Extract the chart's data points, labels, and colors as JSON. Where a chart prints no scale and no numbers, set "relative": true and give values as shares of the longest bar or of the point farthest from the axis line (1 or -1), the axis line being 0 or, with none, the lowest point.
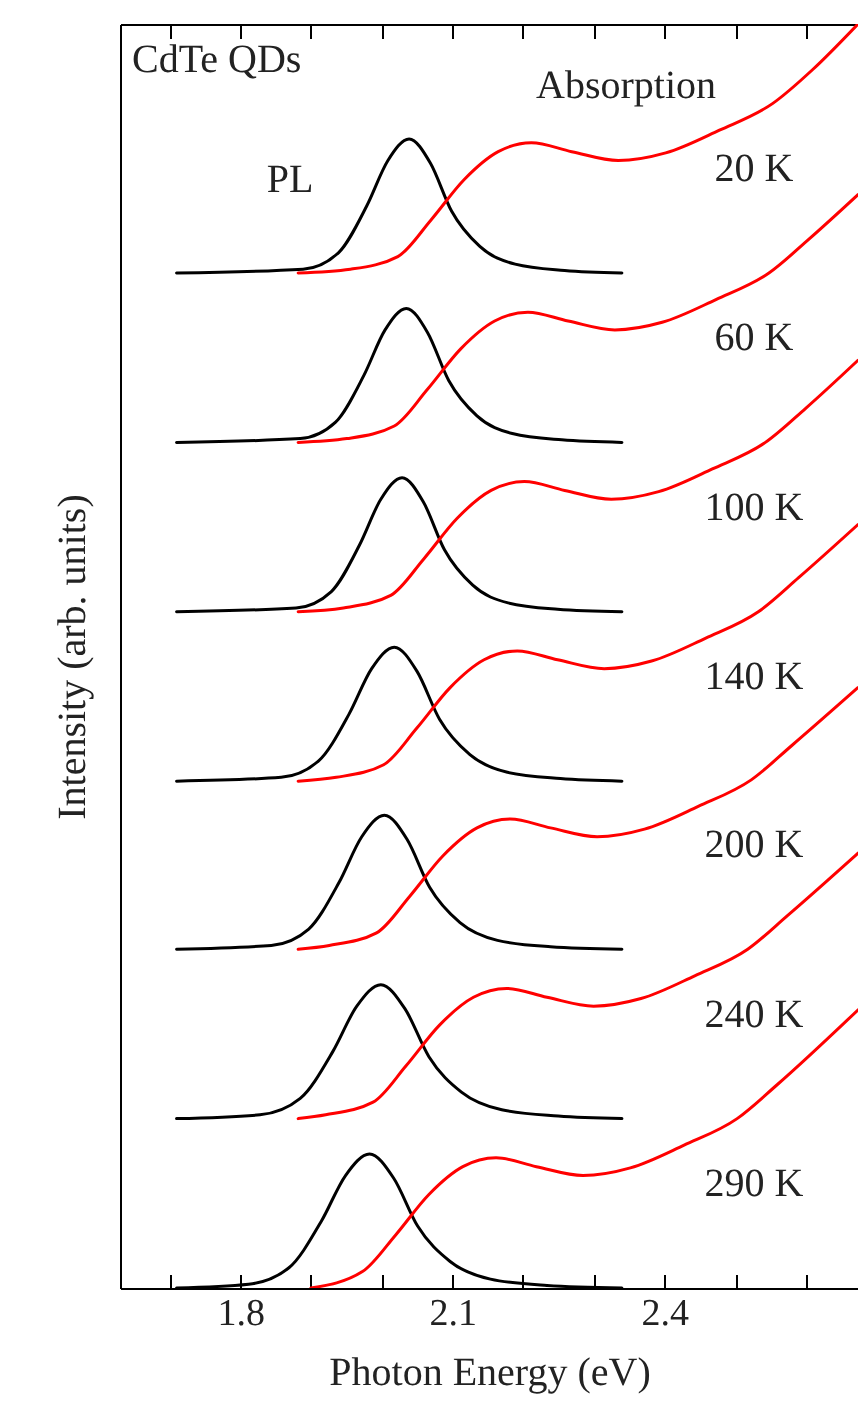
{
  "chart_data": {
    "type": "line",
    "xlabel": "Photon Energy (eV)",
    "ylabel": "Intensity (arb. units)",
    "relative": true,
    "xlim": [
      1.63,
      2.674
    ],
    "xticks": [
      {
        "value": 1.7,
        "label": null
      },
      1.8,
      {
        "value": 1.9,
        "label": null
      },
      {
        "value": 2.0,
        "label": null
      },
      2.1,
      {
        "value": 2.2,
        "label": null
      },
      {
        "value": 2.3,
        "label": null
      },
      2.4,
      {
        "value": 2.5,
        "label": null
      },
      {
        "value": 2.6,
        "label": null
      }
    ],
    "grid": false,
    "marker": "none",
    "line_style": "solid",
    "series": [
      {
        "color": "#000000",
        "x": [
          1.71,
          1.889,
          1.939,
          1.979,
          2.009,
          2.039,
          2.069,
          2.099,
          2.139,
          2.189,
          2.259,
          2.34
        ],
        "values": [
          0.803,
          0.806,
          0.819,
          0.856,
          0.892,
          0.909,
          0.89,
          0.852,
          0.824,
          0.81,
          0.805,
          0.803
        ]
      },
      {
        "name": "20 K",
        "color": "#ff0000",
        "x": [
          1.882,
          1.956,
          2.023,
          2.07,
          2.117,
          2.165,
          2.212,
          2.269,
          2.335,
          2.402,
          2.478,
          2.553,
          2.61,
          2.674
        ],
        "values": [
          0.803,
          0.806,
          0.816,
          0.845,
          0.877,
          0.899,
          0.906,
          0.899,
          0.892,
          0.898,
          0.916,
          0.937,
          0.964,
          1
        ]
      },
      {
        "color": "#000000",
        "x": [
          1.71,
          1.885,
          1.935,
          1.975,
          2.005,
          2.035,
          2.065,
          2.095,
          2.135,
          2.185,
          2.255,
          2.34
        ],
        "values": [
          0.669,
          0.672,
          0.685,
          0.722,
          0.758,
          0.775,
          0.756,
          0.718,
          0.69,
          0.676,
          0.671,
          0.669
        ]
      },
      {
        "name": "60 K",
        "color": "#ff0000",
        "x": [
          1.882,
          1.951,
          2.018,
          2.065,
          2.112,
          2.16,
          2.207,
          2.264,
          2.33,
          2.397,
          2.473,
          2.548,
          2.605,
          2.674
        ],
        "values": [
          0.669,
          0.672,
          0.682,
          0.711,
          0.743,
          0.765,
          0.772,
          0.765,
          0.758,
          0.764,
          0.782,
          0.803,
          0.83,
          0.865
        ]
      },
      {
        "color": "#000000",
        "x": [
          1.71,
          1.879,
          1.929,
          1.969,
          1.999,
          2.029,
          2.059,
          2.089,
          2.129,
          2.179,
          2.249,
          2.34
        ],
        "values": [
          0.535,
          0.538,
          0.551,
          0.588,
          0.624,
          0.641,
          0.622,
          0.584,
          0.556,
          0.542,
          0.537,
          0.535
        ]
      },
      {
        "name": "100 K",
        "color": "#ff0000",
        "x": [
          1.882,
          1.946,
          2.013,
          2.06,
          2.107,
          2.155,
          2.202,
          2.259,
          2.325,
          2.392,
          2.468,
          2.543,
          2.6,
          2.674
        ],
        "values": [
          0.535,
          0.538,
          0.548,
          0.577,
          0.609,
          0.631,
          0.638,
          0.631,
          0.624,
          0.63,
          0.648,
          0.669,
          0.696,
          0.734
        ]
      },
      {
        "color": "#000000",
        "x": [
          1.71,
          1.858,
          1.911,
          1.954,
          1.986,
          2.018,
          2.05,
          2.082,
          2.125,
          2.178,
          2.253,
          2.34
        ],
        "values": [
          0.401,
          0.404,
          0.417,
          0.454,
          0.49,
          0.507,
          0.488,
          0.45,
          0.422,
          0.408,
          0.403,
          0.401
        ]
      },
      {
        "name": "140 K",
        "color": "#ff0000",
        "x": [
          1.882,
          1.936,
          2.003,
          2.05,
          2.097,
          2.145,
          2.192,
          2.249,
          2.315,
          2.382,
          2.458,
          2.533,
          2.59,
          2.674
        ],
        "values": [
          0.401,
          0.404,
          0.414,
          0.443,
          0.475,
          0.497,
          0.504,
          0.497,
          0.49,
          0.496,
          0.514,
          0.535,
          0.562,
          0.604
        ]
      },
      {
        "color": "#000000",
        "x": [
          1.71,
          1.844,
          1.897,
          1.94,
          1.972,
          2.004,
          2.036,
          2.068,
          2.111,
          2.164,
          2.239,
          2.34
        ],
        "values": [
          0.268,
          0.271,
          0.284,
          0.321,
          0.357,
          0.374,
          0.355,
          0.317,
          0.289,
          0.275,
          0.27,
          0.268
        ]
      },
      {
        "name": "200 K",
        "color": "#ff0000",
        "x": [
          1.882,
          1.926,
          1.993,
          2.04,
          2.087,
          2.135,
          2.182,
          2.239,
          2.305,
          2.372,
          2.448,
          2.523,
          2.58,
          2.674
        ],
        "values": [
          0.268,
          0.271,
          0.281,
          0.31,
          0.342,
          0.364,
          0.371,
          0.364,
          0.357,
          0.363,
          0.381,
          0.402,
          0.429,
          0.475
        ]
      },
      {
        "color": "#000000",
        "x": [
          1.71,
          1.828,
          1.885,
          1.931,
          1.965,
          1.999,
          2.033,
          2.067,
          2.113,
          2.17,
          2.25,
          2.34
        ],
        "values": [
          0.134,
          0.137,
          0.15,
          0.187,
          0.223,
          0.24,
          0.221,
          0.183,
          0.155,
          0.141,
          0.136,
          0.134
        ]
      },
      {
        "name": "240 K",
        "color": "#ff0000",
        "x": [
          1.882,
          1.921,
          1.988,
          2.035,
          2.082,
          2.13,
          2.177,
          2.234,
          2.3,
          2.367,
          2.443,
          2.518,
          2.575,
          2.674
        ],
        "values": [
          0.134,
          0.137,
          0.147,
          0.176,
          0.208,
          0.23,
          0.237,
          0.23,
          0.223,
          0.229,
          0.247,
          0.268,
          0.295,
          0.344
        ]
      },
      {
        "color": "#000000",
        "x": [
          1.71,
          1.812,
          1.869,
          1.915,
          1.949,
          1.983,
          2.017,
          2.051,
          2.097,
          2.154,
          2.234,
          2.34
        ],
        "values": [
          0,
          0.003,
          0.016,
          0.053,
          0.089,
          0.106,
          0.087,
          0.049,
          0.021,
          0.007,
          0.002,
          0
        ]
      },
      {
        "name": "290 K",
        "color": "#ff0000",
        "x": [
          1.9,
          1.973,
          2.02,
          2.067,
          2.115,
          2.162,
          2.219,
          2.285,
          2.352,
          2.428,
          2.503,
          2.56,
          2.674
        ],
        "values": [
          0,
          0.013,
          0.042,
          0.074,
          0.096,
          0.103,
          0.096,
          0.089,
          0.095,
          0.113,
          0.134,
          0.161,
          0.22
        ]
      }
    ],
    "annotations": [
      "CdTe QDs",
      "Absorption",
      "PL"
    ]
  }
}
